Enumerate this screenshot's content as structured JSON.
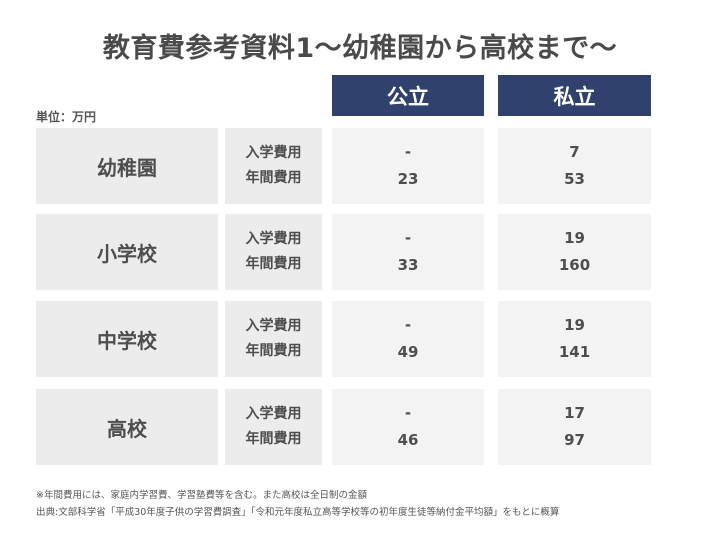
{
  "title": "教育費参考資料1〜幼稚園から高校まで〜",
  "unit_label": "単位：万円",
  "columns": {
    "public": "公立",
    "private": "私立"
  },
  "fee_labels": {
    "entrance": "入学費用",
    "annual": "年間費用"
  },
  "rows": [
    {
      "category": "幼稚園",
      "public": {
        "entrance": "-",
        "annual": "23"
      },
      "private": {
        "entrance": "7",
        "annual": "53"
      }
    },
    {
      "category": "小学校",
      "public": {
        "entrance": "-",
        "annual": "33"
      },
      "private": {
        "entrance": "19",
        "annual": "160"
      }
    },
    {
      "category": "中学校",
      "public": {
        "entrance": "-",
        "annual": "49"
      },
      "private": {
        "entrance": "19",
        "annual": "141"
      }
    },
    {
      "category": "高校",
      "public": {
        "entrance": "-",
        "annual": "46"
      },
      "private": {
        "entrance": "17",
        "annual": "97"
      }
    }
  ],
  "notes": [
    "※年間費用には、家庭内学習費、学習塾費等を含む。また高校は全日制の金額",
    "出典:文部科学省「平成30年度子供の学習費調査」「令和元年度私立高等学校等の初年度生徒等納付金平均額」をもとに概算"
  ]
}
